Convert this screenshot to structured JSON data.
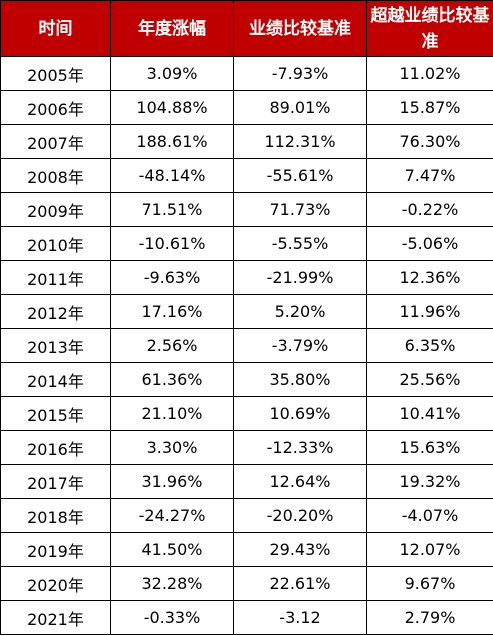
{
  "table": {
    "headers": [
      "时间",
      "年度涨幅",
      "业绩比较基准",
      "超越业绩比较基准"
    ],
    "header_color": "#c00000",
    "rows": [
      [
        "2005年",
        "3.09%",
        "-7.93%",
        "11.02%"
      ],
      [
        "2006年",
        "104.88%",
        "89.01%",
        "15.87%"
      ],
      [
        "2007年",
        "188.61%",
        "112.31%",
        "76.30%"
      ],
      [
        "2008年",
        "-48.14%",
        "-55.61%",
        "7.47%"
      ],
      [
        "2009年",
        "71.51%",
        "71.73%",
        "-0.22%"
      ],
      [
        "2010年",
        "-10.61%",
        "-5.55%",
        "-5.06%"
      ],
      [
        "2011年",
        "-9.63%",
        "-21.99%",
        "12.36%"
      ],
      [
        "2012年",
        "17.16%",
        "5.20%",
        "11.96%"
      ],
      [
        "2013年",
        "2.56%",
        "-3.79%",
        "6.35%"
      ],
      [
        "2014年",
        "61.36%",
        "35.80%",
        "25.56%"
      ],
      [
        "2015年",
        "21.10%",
        "10.69%",
        "10.41%"
      ],
      [
        "2016年",
        "3.30%",
        "-12.33%",
        "15.63%"
      ],
      [
        "2017年",
        "31.96%",
        "12.64%",
        "19.32%"
      ],
      [
        "2018年",
        "-24.27%",
        "-20.20%",
        "-4.07%"
      ],
      [
        "2019年",
        "41.50%",
        "29.43%",
        "12.07%"
      ],
      [
        "2020年",
        "32.28%",
        "22.61%",
        "9.67%"
      ],
      [
        "2021年",
        "-0.33%",
        "-3.12",
        "2.79%"
      ]
    ]
  }
}
